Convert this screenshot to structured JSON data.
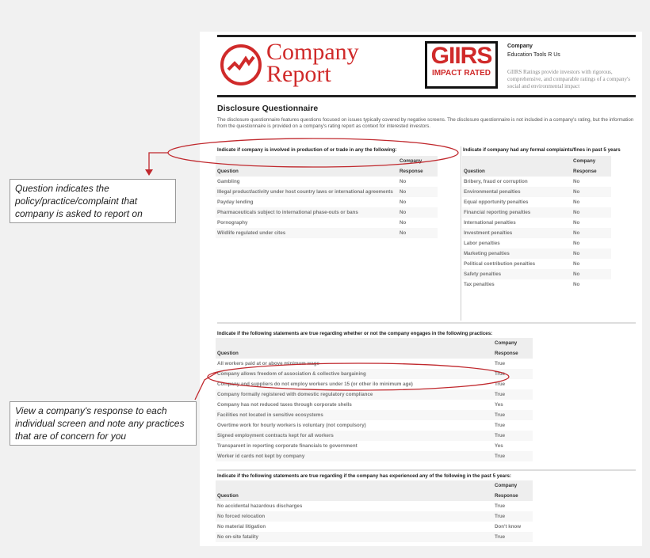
{
  "header": {
    "logo_line1": "Company",
    "logo_line2": "Report",
    "badge_top": "GIIRS",
    "badge_bottom": "IMPACT RATED",
    "company_label": "Company",
    "company_name": "Education Tools R Us",
    "blurb": "GIIRS Ratings provide investors with rigorous, comprehensive, and comparable ratings of a company's social and environmental impact"
  },
  "intro": {
    "title": "Disclosure Questionnaire",
    "text": "The disclosure questionnaire features questions focused on issues typically covered by negative screens. The disclosure questionnaire is not included in a company's rating, but the information from the questionnaire is provided on a company's rating report as context for interested investors."
  },
  "col": {
    "company": "Company",
    "question": "Question",
    "response": "Response"
  },
  "sections": [
    {
      "title": "Indicate if company is involved in production of or trade in any the following:",
      "rows": [
        [
          "Gambling",
          "No"
        ],
        [
          "Illegal product/activity under host country laws or international agreements",
          "No"
        ],
        [
          "Payday lending",
          "No"
        ],
        [
          "Pharmaceuticals subject to international phase-outs or bans",
          "No"
        ],
        [
          "Pornography",
          "No"
        ],
        [
          "Wildlife regulated under cites",
          "No"
        ]
      ]
    },
    {
      "title": "Indicate if company had any formal complaints/fines in past 5 years",
      "rows": [
        [
          "Bribery, fraud or corruption",
          "No"
        ],
        [
          "Environmental penalties",
          "No"
        ],
        [
          "Equal opportunity penalties",
          "No"
        ],
        [
          "Financial reporting penalties",
          "No"
        ],
        [
          "International penalties",
          "No"
        ],
        [
          "Investment penalties",
          "No"
        ],
        [
          "Labor penalties",
          "No"
        ],
        [
          "Marketing penalties",
          "No"
        ],
        [
          "Political contribution penalties",
          "No"
        ],
        [
          "Safety penalties",
          "No"
        ],
        [
          "Tax penalties",
          "No"
        ]
      ]
    },
    {
      "title": "Indicate if the following statements are true regarding whether or not the company engages in the following practices:",
      "rows": [
        [
          "All workers paid at or above minimum wage",
          "True"
        ],
        [
          "Company allows freedom of association & collective bargaining",
          "True"
        ],
        [
          "Company and suppliers do not employ workers under 15 (or other ilo minimum age)",
          "True"
        ],
        [
          "Company formally registered with domestic regulatory compliance",
          "True"
        ],
        [
          "Company has not reduced taxes through corporate shells",
          "Yes"
        ],
        [
          "Facilities not located in sensitive ecosystems",
          "True"
        ],
        [
          "Overtime work for hourly workers is voluntary (not compulsory)",
          "True"
        ],
        [
          "Signed employment contracts kept for all workers",
          "True"
        ],
        [
          "Transparent in reporting corporate financials to government",
          "Yes"
        ],
        [
          "Worker id cards not kept by company",
          "True"
        ]
      ]
    },
    {
      "title": "Indicate if the following statements are true regarding if the company has experienced any of the following in the past 5 years:",
      "rows": [
        [
          "No accidental hazardous discharges",
          "True"
        ],
        [
          "No forced relocation",
          "True"
        ],
        [
          "No material litigation",
          "Don't know"
        ],
        [
          "No on-site fatality",
          "True"
        ]
      ]
    }
  ],
  "callouts": [
    "Question indicates the policy/practice/complaint that company is asked to report on",
    "View a company's response to each individual screen and note any practices that are of concern for you"
  ],
  "colors": {
    "accent": "#d02a2a"
  }
}
